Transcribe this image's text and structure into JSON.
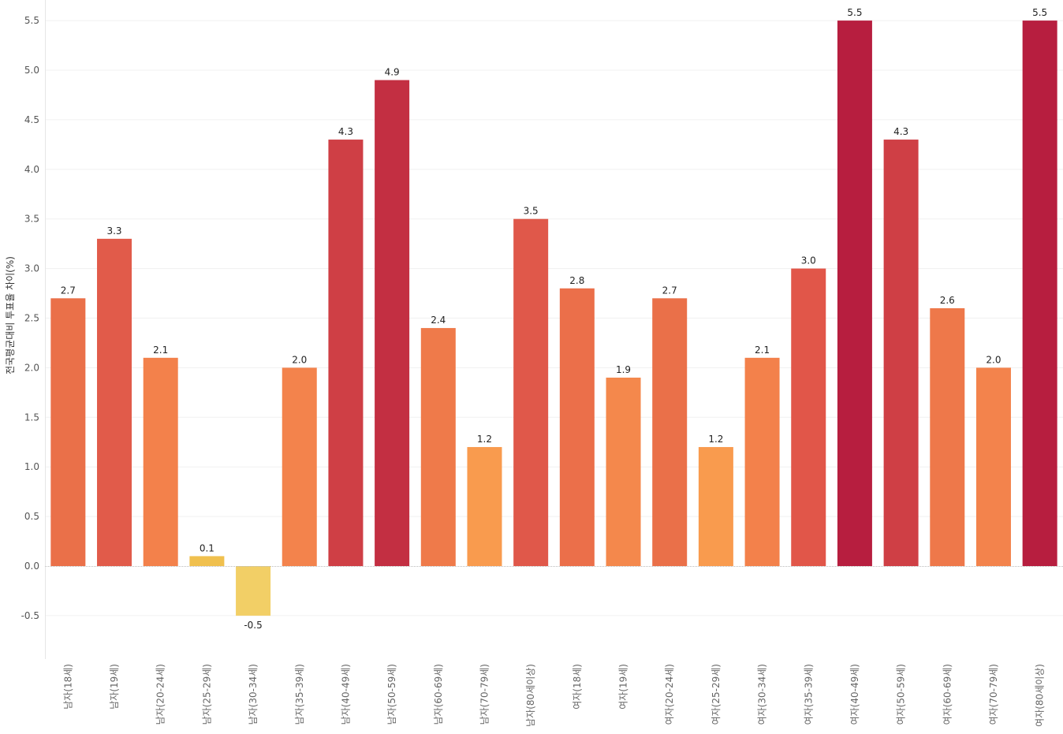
{
  "chart_data": {
    "type": "bar",
    "title": "",
    "xlabel": "",
    "ylabel": "전국평균대비 투표율 차이(%)",
    "ylim": [
      -0.95,
      5.65
    ],
    "yticks": [
      -0.5,
      0.0,
      0.5,
      1.0,
      1.5,
      2.0,
      2.5,
      3.0,
      3.5,
      4.0,
      4.5,
      5.0,
      5.5
    ],
    "ytick_labels": [
      "-0.5",
      "0.0",
      "0.5",
      "1.0",
      "1.5",
      "2.0",
      "2.5",
      "3.0",
      "3.5",
      "4.0",
      "4.5",
      "5.0",
      "5.5"
    ],
    "grid": true,
    "categories": [
      "남자(18세)",
      "남자(19세)",
      "남자(20-24세)",
      "남자(25-29세)",
      "남자(30-34세)",
      "남자(35-39세)",
      "남자(40-49세)",
      "남자(50-59세)",
      "남자(60-69세)",
      "남자(70-79세)",
      "남자(80세이상)",
      "여자(18세)",
      "여자(19세)",
      "여자(20-24세)",
      "여자(25-29세)",
      "여자(30-34세)",
      "여자(35-39세)",
      "여자(40-49세)",
      "여자(50-59세)",
      "여자(60-69세)",
      "여자(70-79세)",
      "여자(80세이상)"
    ],
    "values": [
      2.7,
      3.3,
      2.1,
      0.1,
      -0.5,
      2.0,
      4.3,
      4.9,
      2.4,
      1.2,
      3.5,
      2.8,
      1.9,
      2.7,
      1.2,
      2.1,
      3.0,
      5.5,
      4.3,
      2.6,
      2.0,
      5.5
    ],
    "value_labels": [
      "2.7",
      "3.3",
      "2.1",
      "0.1",
      "-0.5",
      "2.0",
      "4.3",
      "4.9",
      "2.4",
      "1.2",
      "3.5",
      "2.8",
      "1.9",
      "2.7",
      "1.2",
      "2.1",
      "3.0",
      "5.5",
      "4.3",
      "2.6",
      "2.0",
      "5.5"
    ],
    "colors": [
      "#ea7049",
      "#e15b4a",
      "#f3814b",
      "#f0c04e",
      "#f2cf66",
      "#f3834c",
      "#cf3f45",
      "#c32f42",
      "#ef7a4a",
      "#f99b4e",
      "#e0584a",
      "#eb6f4a",
      "#f4884c",
      "#ea7049",
      "#f99b4e",
      "#f3814b",
      "#e15649",
      "#b71e3f",
      "#cf3f45",
      "#ee784a",
      "#f3834c",
      "#b71e3f"
    ],
    "zero_line_color": "#bbbbbb",
    "grid_color": "#f0f0f0"
  }
}
